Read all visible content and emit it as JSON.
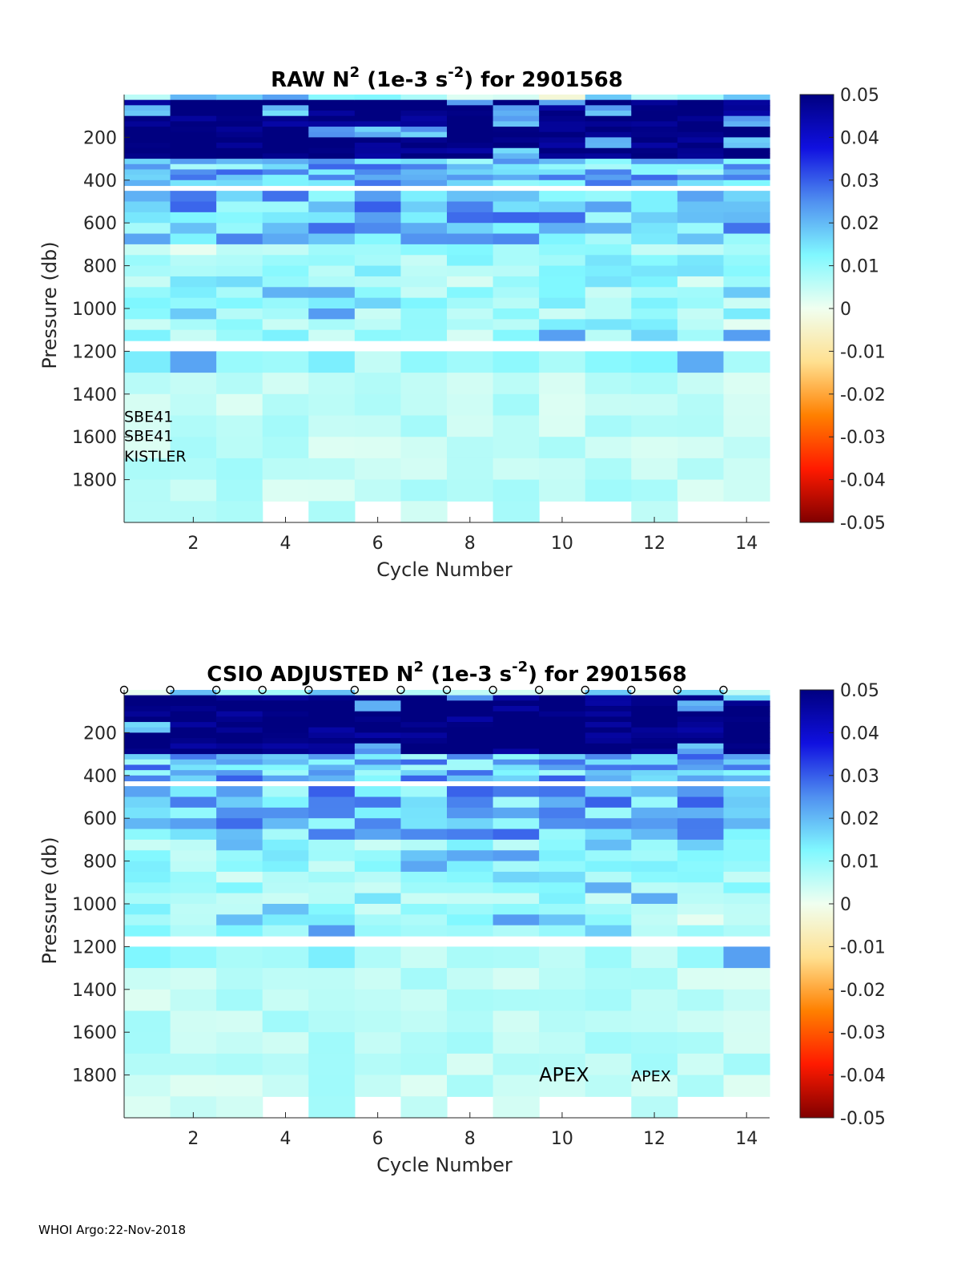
{
  "footer": "WHOI Argo:22-Nov-2018",
  "colors": {
    "scale": [
      "#800000",
      "#ff1a00",
      "#ff8000",
      "#ffe090",
      "#f0fff0",
      "#80f8ff",
      "#5090f0",
      "#1010e0",
      "#000080"
    ],
    "missing": "#ffffff",
    "axis": "#262626"
  },
  "chart_data": [
    {
      "type": "heatmap",
      "title_prefix": "RAW N",
      "title_sup1": "2",
      "title_mid": " (1e-3 s",
      "title_sup2": "-2",
      "title_suffix": ") for 2901568",
      "xlabel": "Cycle Number",
      "ylabel": "Pressure (db)",
      "xlim": [
        1,
        14
      ],
      "ylim": [
        0,
        2000
      ],
      "xticks": [
        "2",
        "4",
        "6",
        "8",
        "10",
        "12",
        "14"
      ],
      "yticks": [
        "200",
        "400",
        "600",
        "800",
        "1000",
        "1200",
        "1400",
        "1600",
        "1800"
      ],
      "colorbar": {
        "range": [
          -0.05,
          0.05
        ],
        "ticks": [
          "0.05",
          "0.04",
          "0.03",
          "0.02",
          "0.01",
          "0",
          "-0.01",
          "-0.02",
          "-0.03",
          "-0.04",
          "-0.05"
        ]
      },
      "cycles": [
        1,
        2,
        3,
        4,
        5,
        6,
        7,
        8,
        9,
        10,
        11,
        12,
        13,
        14
      ],
      "max_pressure": [
        2000,
        2000,
        2000,
        1900,
        2000,
        1900,
        2000,
        1900,
        2000,
        1900,
        1900,
        2000,
        1900,
        1900
      ],
      "profile_markers": false,
      "annotations": [
        {
          "text": "SBE41",
          "cycle": 1.0,
          "pressure": 1530,
          "size": "small"
        },
        {
          "text": "SBE41",
          "cycle": 1.0,
          "pressure": 1620,
          "size": "small"
        },
        {
          "text": "KISTLER",
          "cycle": 1.0,
          "pressure": 1715,
          "size": "small"
        }
      ]
    },
    {
      "type": "heatmap",
      "title_prefix": "CSIO  ADJUSTED N",
      "title_sup1": "2",
      "title_mid": " (1e-3 s",
      "title_sup2": "-2",
      "title_suffix": ") for 2901568",
      "xlabel": "Cycle Number",
      "ylabel": "Pressure (db)",
      "xlim": [
        1,
        14
      ],
      "ylim": [
        0,
        2000
      ],
      "xticks": [
        "2",
        "4",
        "6",
        "8",
        "10",
        "12",
        "14"
      ],
      "yticks": [
        "200",
        "400",
        "600",
        "800",
        "1000",
        "1200",
        "1400",
        "1600",
        "1800"
      ],
      "colorbar": {
        "range": [
          -0.05,
          0.05
        ],
        "ticks": [
          "0.05",
          "0.04",
          "0.03",
          "0.02",
          "0.01",
          "0",
          "-0.01",
          "-0.02",
          "-0.03",
          "-0.04",
          "-0.05"
        ]
      },
      "cycles": [
        1,
        2,
        3,
        4,
        5,
        6,
        7,
        8,
        9,
        10,
        11,
        12,
        13,
        14
      ],
      "max_pressure": [
        2000,
        2000,
        2000,
        1900,
        2000,
        1900,
        2000,
        1900,
        2000,
        1900,
        1900,
        2000,
        1900,
        1900
      ],
      "profile_markers": true,
      "annotations": [
        {
          "text": "APEX",
          "cycle": 10.0,
          "pressure": 1830,
          "size": "large"
        },
        {
          "text": "APEX",
          "cycle": 12.0,
          "pressure": 1830,
          "size": "small"
        }
      ]
    }
  ]
}
